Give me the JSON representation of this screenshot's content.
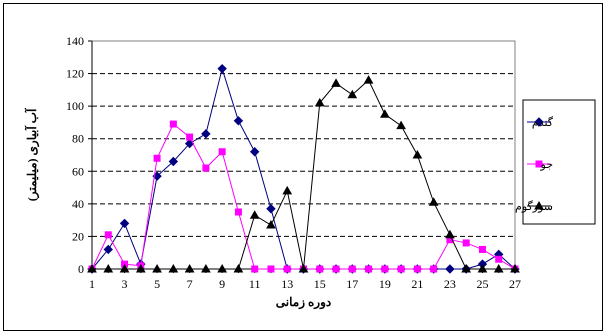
{
  "chart_data": {
    "type": "line",
    "xlabel": "دوره زمانی",
    "ylabel": "آب آبیاری (میلیمتر)",
    "ylim": [
      0,
      140
    ],
    "yticks": [
      0,
      20,
      40,
      60,
      80,
      100,
      120,
      140
    ],
    "x": [
      1,
      2,
      3,
      4,
      5,
      6,
      7,
      8,
      9,
      10,
      11,
      12,
      13,
      14,
      15,
      16,
      17,
      18,
      19,
      20,
      21,
      22,
      23,
      24,
      25,
      26,
      27
    ],
    "xtick_labels": [
      "1",
      "3",
      "5",
      "7",
      "9",
      "11",
      "13",
      "15",
      "17",
      "19",
      "21",
      "23",
      "25",
      "27"
    ],
    "grid": "horizontal dashed",
    "legend_position": "right",
    "series": [
      {
        "name": "گندم",
        "color": "#000080",
        "marker": "diamond",
        "values": [
          0,
          12,
          28,
          3,
          57,
          66,
          77,
          83,
          123,
          91,
          72,
          37,
          0,
          0,
          0,
          0,
          0,
          0,
          0,
          0,
          0,
          0,
          0,
          0,
          3,
          9,
          0
        ]
      },
      {
        "name": "جو",
        "color": "#ff00ff",
        "marker": "square",
        "values": [
          0,
          21,
          3,
          2,
          68,
          89,
          81,
          62,
          72,
          35,
          0,
          0,
          0,
          0,
          0,
          0,
          0,
          0,
          0,
          0,
          0,
          0,
          18,
          16,
          12,
          6,
          0
        ]
      },
      {
        "name": "سورگوم",
        "color": "#000000",
        "marker": "triangle",
        "values": [
          0,
          0,
          0,
          0,
          0,
          0,
          0,
          0,
          0,
          0,
          33,
          27,
          48,
          0,
          102,
          114,
          107,
          116,
          95,
          88,
          70,
          41,
          21,
          0,
          0,
          0,
          0
        ]
      }
    ]
  }
}
